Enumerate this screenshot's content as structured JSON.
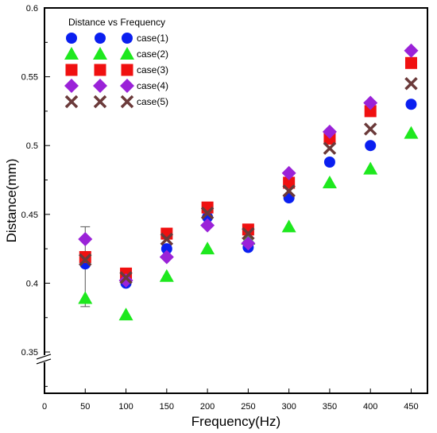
{
  "chart_data": {
    "type": "scatter",
    "title": "",
    "xlabel": "Frequency(Hz)",
    "ylabel": "Distance(mm)",
    "xlim": [
      0,
      470
    ],
    "ylim": [
      0.32,
      0.6
    ],
    "x_ticks": [
      0,
      50,
      100,
      150,
      200,
      250,
      300,
      350,
      400,
      450
    ],
    "x_tick_labels": [
      "0",
      "50",
      "100",
      "150",
      "200",
      "250",
      "300",
      "350",
      "400",
      "450"
    ],
    "y_ticks": [
      0.35,
      0.4,
      0.45,
      0.5,
      0.55,
      0.6
    ],
    "y_tick_labels": [
      "0.35",
      "0.4",
      "0.45",
      "0.5",
      "0.55",
      "0.6"
    ],
    "y_axis_break": true,
    "grid": false,
    "legend_title": "Distance vs Frequency",
    "legend_position": "top-left",
    "x": [
      50,
      100,
      150,
      200,
      250,
      300,
      350,
      400,
      450
    ],
    "series": [
      {
        "name": "case(1)",
        "marker": "circle",
        "color": "#0a1ff0",
        "values": [
          0.414,
          0.4,
          0.425,
          0.448,
          0.426,
          0.462,
          0.488,
          0.5,
          0.53
        ]
      },
      {
        "name": "case(2)",
        "marker": "triangle",
        "color": "#1ee81e",
        "values": [
          0.389,
          0.377,
          0.405,
          0.425,
          0.432,
          0.441,
          0.473,
          0.483,
          0.509
        ]
      },
      {
        "name": "case(3)",
        "marker": "square",
        "color": "#f01010",
        "values": [
          0.419,
          0.407,
          0.436,
          0.455,
          0.439,
          0.473,
          0.505,
          0.525,
          0.56
        ]
      },
      {
        "name": "case(4)",
        "marker": "diamond",
        "color": "#9a22d8",
        "values": [
          0.432,
          0.402,
          0.419,
          0.442,
          0.429,
          0.48,
          0.51,
          0.531,
          0.569
        ]
      },
      {
        "name": "case(5)",
        "marker": "x",
        "color": "#6b3a3a",
        "values": [
          0.417,
          0.404,
          0.432,
          0.451,
          0.436,
          0.467,
          0.498,
          0.512,
          0.545
        ]
      }
    ],
    "error_bar": {
      "x": 50,
      "low": 0.383,
      "high": 0.441
    }
  }
}
